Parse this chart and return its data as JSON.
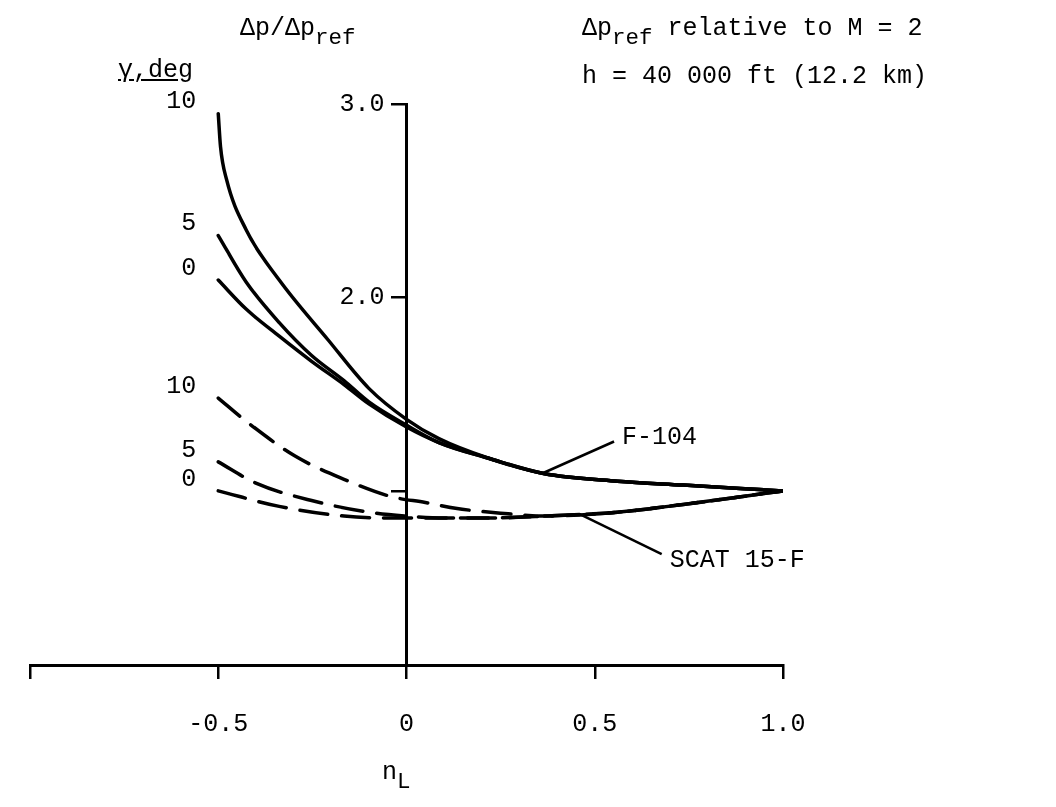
{
  "chart_data": {
    "type": "line",
    "ylabel": "Δp/Δp$_{ref}$",
    "xlabel": "n$_{L}$",
    "legend_title": "γ,deg",
    "annotations": [
      {
        "text": "F-104",
        "x": 0.36,
        "y": 1.09
      },
      {
        "text": "SCAT 15-F",
        "x": 0.46,
        "y": 0.88
      },
      "Δp$_{ref}$ relative to M = 2",
      "h = 40 000 ft (12.2 km)"
    ],
    "xlim": [
      -1,
      1
    ],
    "xticks": [
      {
        "value": -1,
        "label": null
      },
      -0.5,
      0,
      0.5,
      {
        "value": 1,
        "label": "1.0"
      }
    ],
    "ylim": [
      0.1,
      3
    ],
    "yticks": [
      {
        "value": 1,
        "label": null
      },
      {
        "value": 2,
        "label": "2.0"
      },
      {
        "value": 3,
        "label": "3.0"
      }
    ],
    "grid": false,
    "marker": "none",
    "series": [
      {
        "name": "10",
        "color": "#000000",
        "line_style": "solid",
        "x": [
          -0.5,
          -0.494,
          -0.478,
          -0.426,
          -0.338,
          -0.208,
          -0.1,
          0,
          0.086,
          0.216,
          0.364,
          0.56,
          0.735,
          1.0
        ],
        "values": [
          2.95,
          2.78,
          2.61,
          2.35,
          2.09,
          1.78,
          1.53,
          1.37,
          1.27,
          1.17,
          1.09,
          1.05,
          1.03,
          1.0
        ]
      },
      {
        "name": "5",
        "color": "#000000",
        "line_style": "solid",
        "x": [
          -0.5,
          -0.426,
          -0.338,
          -0.252,
          -0.166,
          -0.1,
          0,
          0.086,
          0.216,
          0.364,
          0.56,
          0.735,
          1.0
        ],
        "values": [
          2.32,
          2.08,
          1.87,
          1.7,
          1.57,
          1.46,
          1.34,
          1.25,
          1.17,
          1.09,
          1.05,
          1.03,
          1.0
        ]
      },
      {
        "name": "0",
        "color": "#000000",
        "line_style": "solid",
        "x": [
          -0.5,
          -0.426,
          -0.338,
          -0.252,
          -0.166,
          -0.1,
          0,
          0.086,
          0.216,
          0.364,
          0.56,
          0.735,
          1.0
        ],
        "values": [
          2.09,
          1.94,
          1.8,
          1.67,
          1.55,
          1.45,
          1.33,
          1.25,
          1.17,
          1.09,
          1.05,
          1.03,
          1.0
        ]
      },
      {
        "name": "10",
        "color": "#000000",
        "line_style": "dashed",
        "x": [
          -0.5,
          -0.426,
          -0.296,
          -0.166,
          -0.04,
          0.05,
          0.13,
          0.25,
          0.37,
          0.56,
          0.735,
          1.0
        ],
        "values": [
          1.48,
          1.36,
          1.18,
          1.06,
          0.97,
          0.94,
          0.91,
          0.885,
          0.87,
          0.89,
          0.93,
          1.0
        ]
      },
      {
        "name": "5",
        "color": "#000000",
        "line_style": "dashed",
        "x": [
          -0.5,
          -0.4,
          -0.252,
          -0.1,
          0,
          0.1,
          0.216,
          0.37,
          0.56,
          0.735,
          1.0
        ],
        "values": [
          1.15,
          1.04,
          0.95,
          0.89,
          0.87,
          0.86,
          0.86,
          0.87,
          0.89,
          0.93,
          1.0
        ]
      },
      {
        "name": "0",
        "color": "#000000",
        "line_style": "dashed",
        "x": [
          -0.5,
          -0.338,
          -0.166,
          -0.036,
          0.1,
          0.216,
          0.37,
          0.56,
          0.735,
          1.0
        ],
        "values": [
          1.0,
          0.92,
          0.87,
          0.86,
          0.86,
          0.86,
          0.87,
          0.89,
          0.93,
          1.0
        ]
      }
    ]
  }
}
